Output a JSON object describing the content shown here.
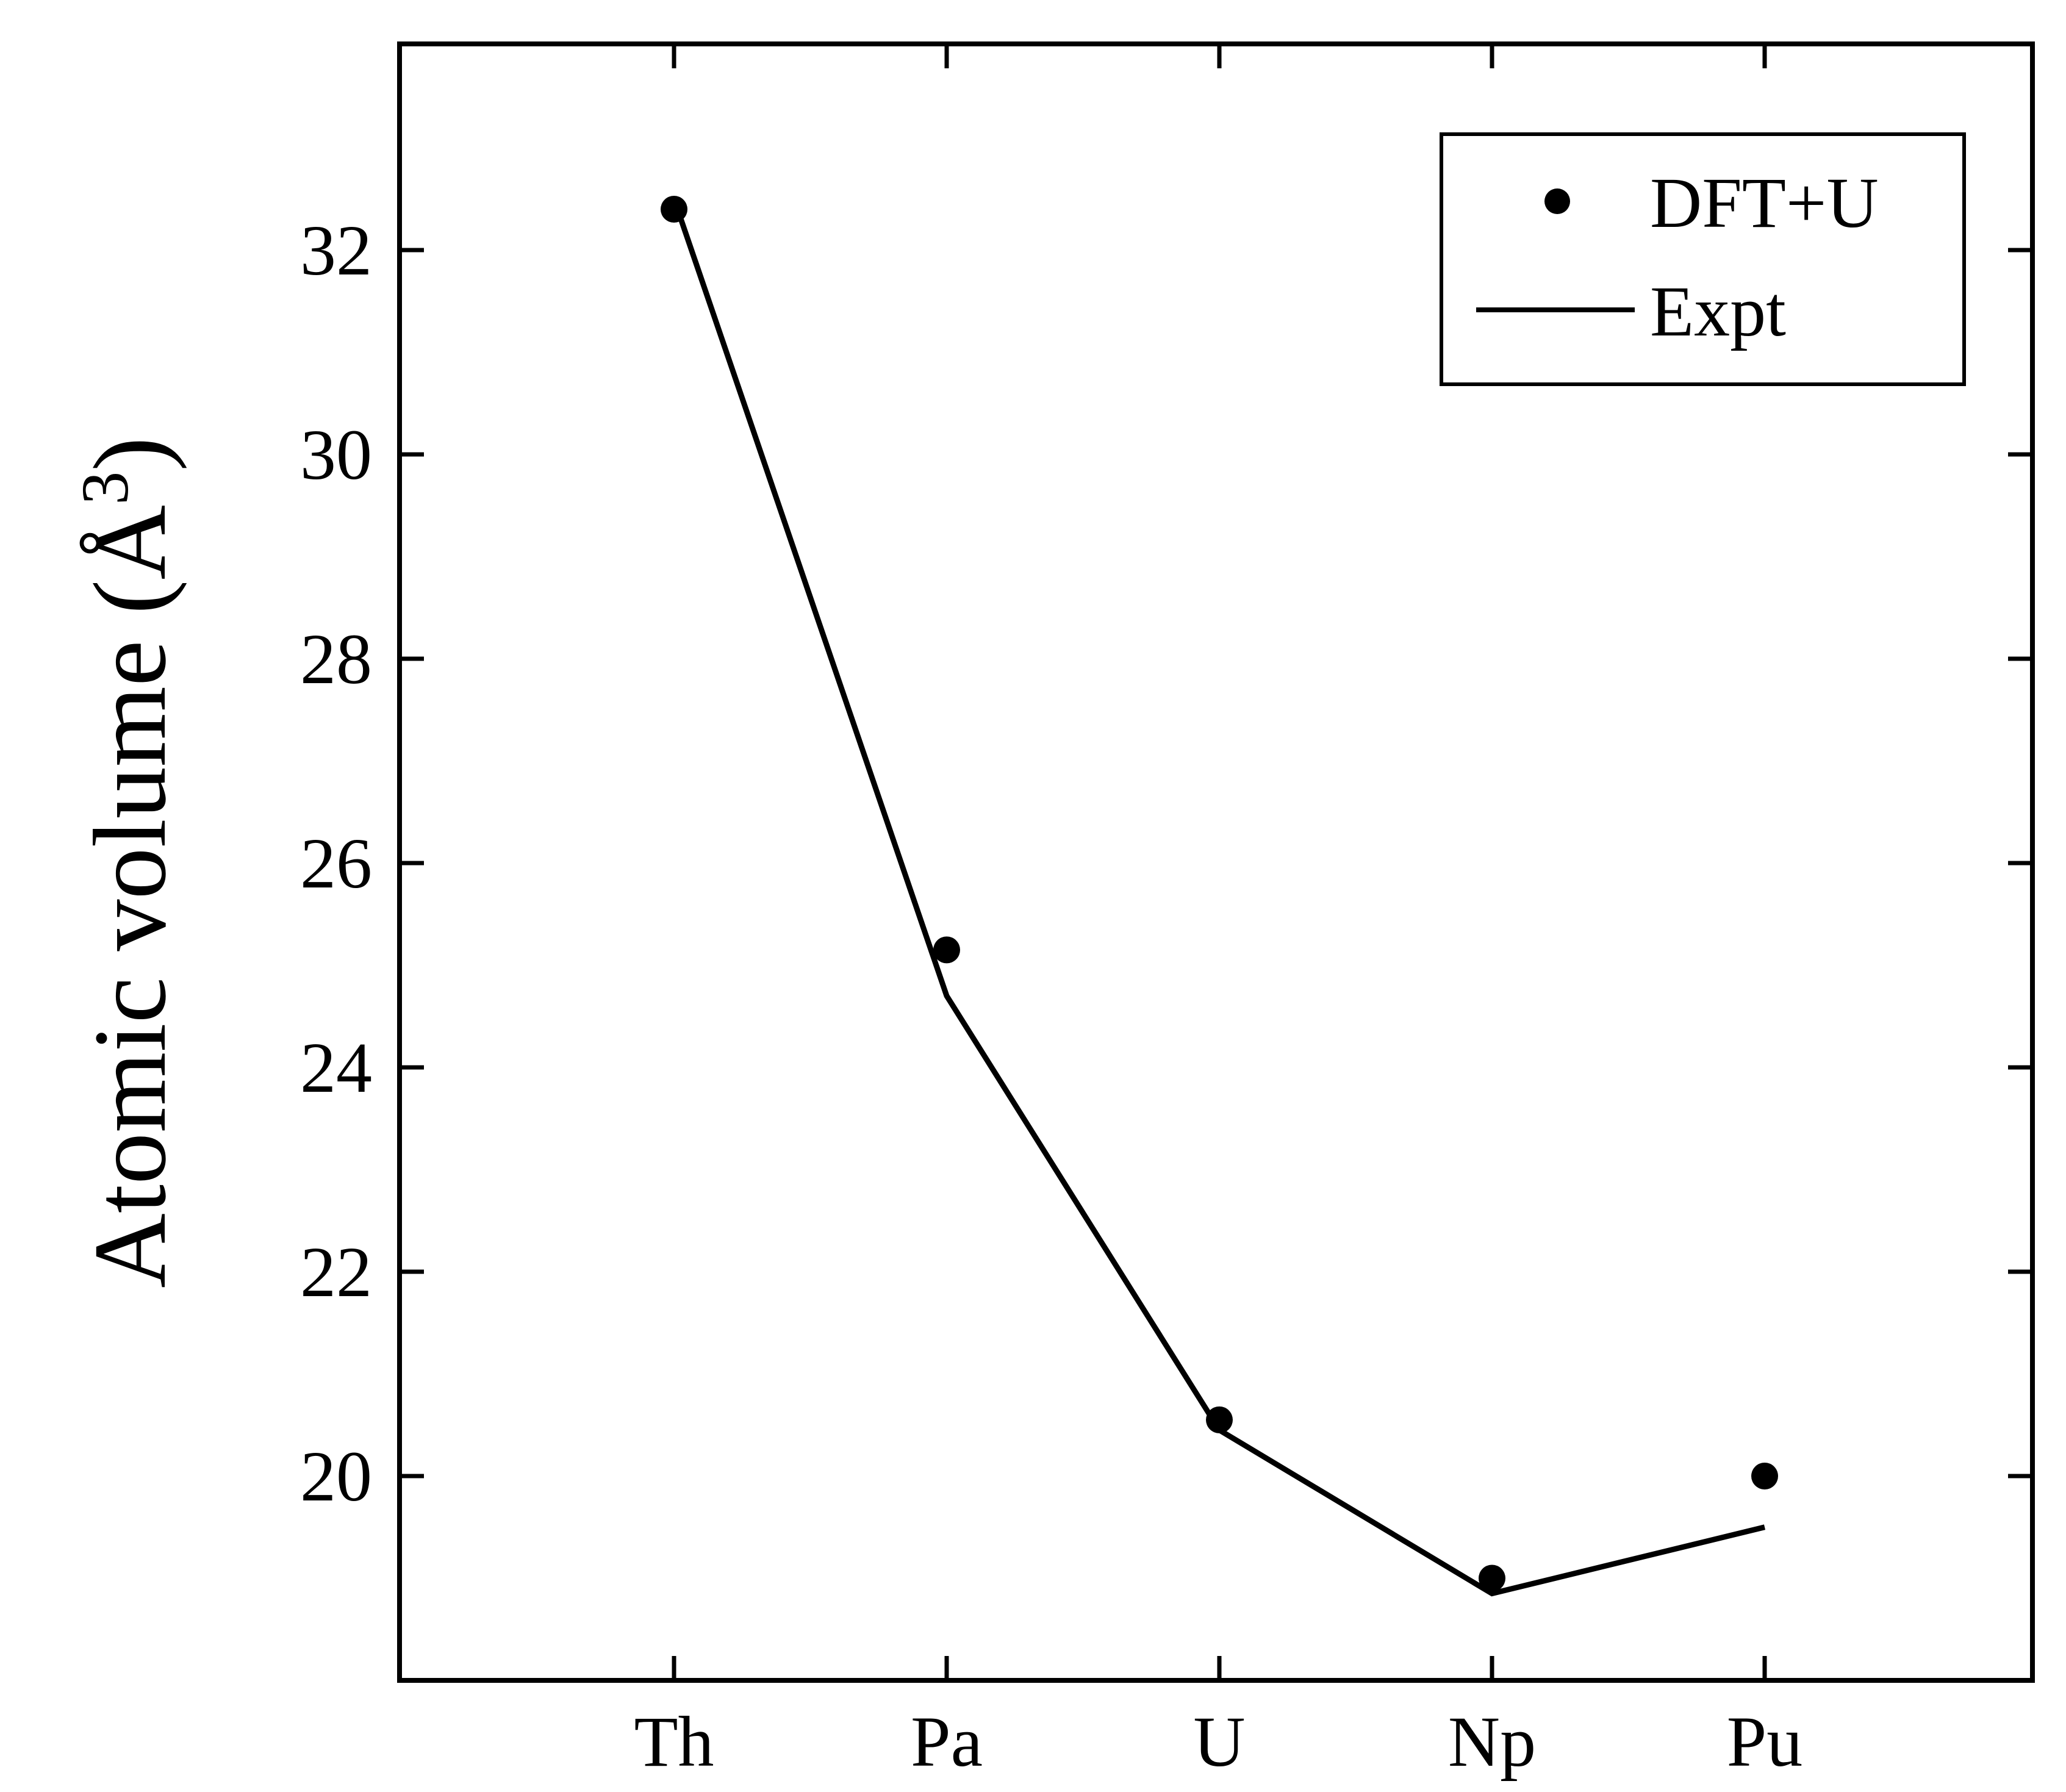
{
  "chart_data": {
    "type": "line",
    "title": "",
    "xlabel": "",
    "ylabel": "Atomic volume (Å",
    "ylabel_superscript": "3",
    "ylabel_close": ")",
    "categories": [
      "Th",
      "Pa",
      "U",
      "Np",
      "Pu"
    ],
    "ylim": [
      16.0,
      32.0
    ],
    "yticks": [
      20,
      22,
      24,
      26,
      28,
      30,
      32
    ],
    "ytick_labels": [
      "20",
      "22",
      "24",
      "26",
      "28",
      "30",
      "32"
    ],
    "grid": false,
    "legend_position": "top-right",
    "series": [
      {
        "name": "DFT+U",
        "style": "markers",
        "color": "#000000",
        "values": [
          32.4,
          25.15,
          20.55,
          19.0,
          20.0
        ]
      },
      {
        "name": "Expt",
        "style": "line",
        "color": "#000000",
        "values": [
          32.5,
          24.7,
          20.45,
          18.85,
          19.5
        ]
      }
    ]
  }
}
